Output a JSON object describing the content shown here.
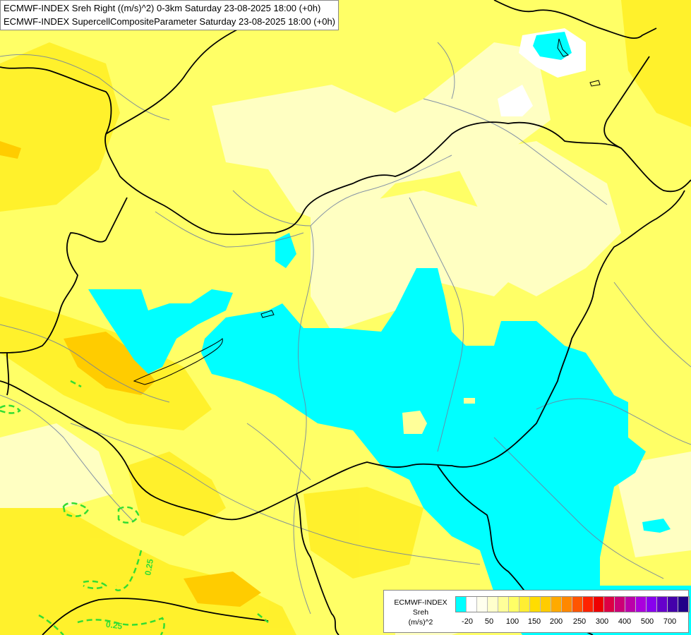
{
  "header": {
    "line1": "ECMWF-INDEX Sreh Right ((m/s)^2) 0-3km Saturday 23-08-2025 18:00 (+0h)",
    "line2": "ECMWF-INDEX SupercellCompositeParameter Saturday 23-08-2025 18:00 (+0h)"
  },
  "map": {
    "contour_labels": [
      "0.25",
      "0.25"
    ],
    "colors": {
      "land_base": "#ffff66",
      "pale": "#ffffcc",
      "yellow": "#ffee00",
      "orange": "#ffcc00",
      "cyan": "#00ffff",
      "white": "#ffffff",
      "borders": "#000000",
      "rivers": "#6f7fa0",
      "scp_contour": "#33dd33"
    }
  },
  "legend": {
    "title_line1": "ECMWF-INDEX",
    "title_line2": "Sreh",
    "title_line3": "(m/s)^2",
    "ticks": [
      "-20",
      "50",
      "100",
      "150",
      "200",
      "250",
      "300",
      "400",
      "500",
      "700"
    ],
    "colors": [
      "#00ffff",
      "#ffffff",
      "#ffffee",
      "#ffffcc",
      "#ffff99",
      "#ffff66",
      "#ffee33",
      "#ffdd00",
      "#ffcc00",
      "#ffaa00",
      "#ff8800",
      "#ff5500",
      "#ff2200",
      "#ee0000",
      "#dd0044",
      "#cc0077",
      "#bb00aa",
      "#aa00dd",
      "#8800ee",
      "#6600cc",
      "#4400aa",
      "#220088"
    ]
  }
}
